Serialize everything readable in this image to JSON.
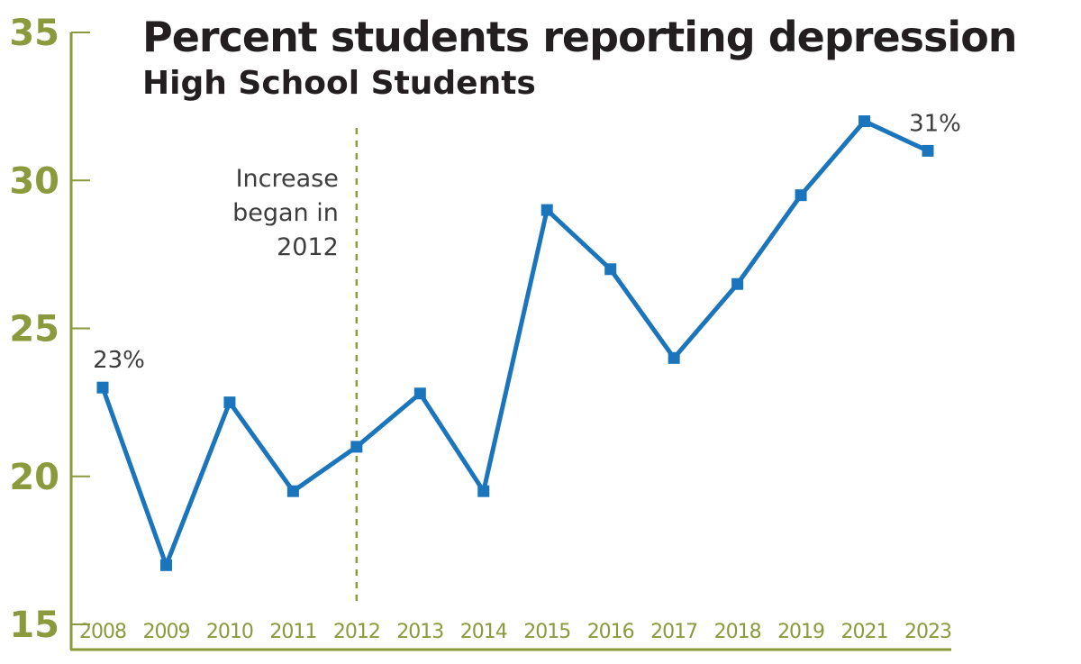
{
  "chart_data": {
    "type": "line",
    "title": "Percent students reporting depression",
    "subtitle": "High School Students",
    "xlabel": "",
    "ylabel": "",
    "categories": [
      "2008",
      "2009",
      "2010",
      "2011",
      "2012",
      "2013",
      "2014",
      "2015",
      "2016",
      "2017",
      "2018",
      "2019",
      "2021",
      "2023"
    ],
    "series": [
      {
        "values": [
          23.0,
          17.0,
          22.5,
          19.5,
          21.0,
          22.8,
          19.5,
          29.0,
          27.0,
          24.0,
          26.5,
          29.5,
          32.0,
          31.0
        ]
      }
    ],
    "ylim": [
      15,
      35
    ],
    "yticks": [
      "15",
      "20",
      "25",
      "30",
      "35"
    ],
    "grid": false,
    "data_labels": [
      {
        "category": "2008",
        "text": "23%"
      },
      {
        "category": "2023",
        "text": "31%"
      }
    ],
    "annotation": {
      "category": "2012",
      "lines": [
        "Increase",
        "began in",
        "2012"
      ]
    },
    "colors": {
      "line": "#1a75bc",
      "axis": "#8a9a3c",
      "text": "#3d3d3d"
    }
  }
}
